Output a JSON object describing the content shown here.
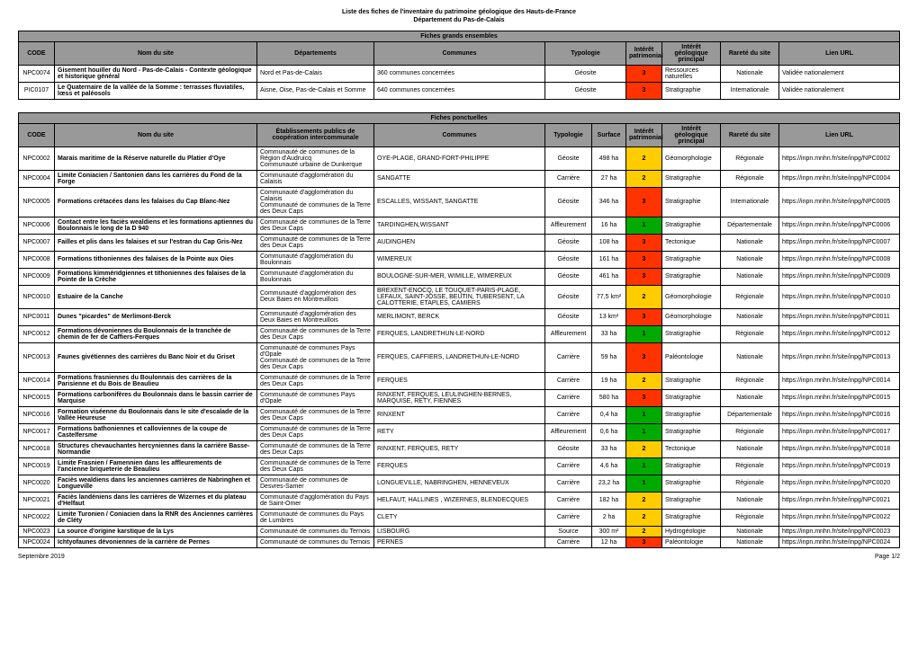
{
  "title_line1": "Liste des fiches de l'inventaire du patrimoine géologique des Hauts-de-France",
  "title_line2": "Département du Pas-de-Calais",
  "section1_banner": "Fiches grands ensembles",
  "section2_banner": "Fiches ponctuelles",
  "t1_cols": {
    "code": "CODE",
    "nom": "Nom du site",
    "dep": "Départements",
    "comm": "Communes",
    "typ": "Typologie",
    "int": "Intérêt patrimonial",
    "intgeo": "Intérêt géologique principal",
    "rarete": "Rareté du site",
    "lien": "Lien URL"
  },
  "t2_cols": {
    "code": "CODE",
    "nom": "Nom du site",
    "etab": "Établissements publics de coopération intercommunale",
    "comm": "Communes",
    "typ": "Typologie",
    "surf": "Surface",
    "int": "Intérêt patrimonial",
    "intgeo": "Intérêt géologique principal",
    "rarete": "Rareté du site",
    "lien": "Lien URL"
  },
  "t1_rows": [
    {
      "code": "NPC0074",
      "nom": "Gisement houiller du Nord - Pas-de-Calais - Contexte géologique et historique général",
      "dep": "Nord et Pas-de-Calais",
      "comm": "360 communes concernées",
      "typ": "Géosite",
      "int": 3,
      "intgeo": "Ressources naturelles",
      "rarete": "Nationale",
      "lien": "Validée nationalement"
    },
    {
      "code": "PIC0107",
      "nom": "Le Quaternaire de la vallée de la Somme : terrasses fluviatiles, lœss et paléosols",
      "dep": "Aisne, Oise, Pas-de-Calais et Somme",
      "comm": "640 communes concernées",
      "typ": "Géosite",
      "int": 3,
      "intgeo": "Stratigraphie",
      "rarete": "Internationale",
      "lien": "Validée nationalement"
    }
  ],
  "t2_rows": [
    {
      "code": "NPC0002",
      "nom": "Marais maritime de la Réserve naturelle du Platier d'Oye",
      "etab": "Communauté de communes de la Région d'Audruicq\nCommunauté urbaine de Dunkerque",
      "comm": "OYE-PLAGE, GRAND-FORT-PHILIPPE",
      "typ": "Géosite",
      "surf": "498 ha",
      "int": 2,
      "intgeo": "Géomorphologie",
      "rarete": "Régionale",
      "lien": "https://inpn.mnhn.fr/site/inpg/NPC0002"
    },
    {
      "code": "NPC0004",
      "nom": "Limite Coniacien / Santonien dans les carrières du Fond de la Forge",
      "etab": "Communauté d'agglomération du Calaisis",
      "comm": "SANGATTE",
      "typ": "Carrière",
      "surf": "27 ha",
      "int": 2,
      "intgeo": "Stratigraphie",
      "rarete": "Régionale",
      "lien": "https://inpn.mnhn.fr/site/inpg/NPC0004"
    },
    {
      "code": "NPC0005",
      "nom": "Formations crétacées dans les falaises du Cap Blanc-Nez",
      "etab": "Communauté d'agglomération du Calaisis\nCommunauté de communes de la Terre des Deux Caps",
      "comm": "ESCALLES, WISSANT, SANGATTE",
      "typ": "Géosite",
      "surf": "346 ha",
      "int": 3,
      "intgeo": "Stratigraphie",
      "rarete": "Internationale",
      "lien": "https://inpn.mnhn.fr/site/inpg/NPC0005"
    },
    {
      "code": "NPC0006",
      "nom": "Contact entre les faciès wealdiens et les formations aptiennes du Boulonnais le long de la D 940",
      "etab": "Communauté de communes de la Terre des Deux Caps",
      "comm": "TARDINGHEN,WISSANT",
      "typ": "Affleurement",
      "surf": "16 ha",
      "int": 1,
      "intgeo": "Stratigraphie",
      "rarete": "Départementale",
      "lien": "https://inpn.mnhn.fr/site/inpg/NPC0006"
    },
    {
      "code": "NPC0007",
      "nom": "Failles et plis dans les falaises et sur l'estran du Cap Gris-Nez",
      "etab": "Communauté de communes de la Terre des Deux Caps",
      "comm": "AUDINGHEN",
      "typ": "Géosite",
      "surf": "108 ha",
      "int": 3,
      "intgeo": "Tectonique",
      "rarete": "Nationale",
      "lien": "https://inpn.mnhn.fr/site/inpg/NPC0007"
    },
    {
      "code": "NPC0008",
      "nom": "Formations tithoniennes des falaises de la Pointe aux Oies",
      "etab": "Communauté d'agglomération du Boulonnais",
      "comm": "WIMEREUX",
      "typ": "Géosite",
      "surf": "161 ha",
      "int": 3,
      "intgeo": "Stratigraphie",
      "rarete": "Nationale",
      "lien": "https://inpn.mnhn.fr/site/inpg/NPC0008"
    },
    {
      "code": "NPC0009",
      "nom": "Formations kimméridgiennes et tithoniennes des falaises de la Pointe de la Crèche",
      "etab": "Communauté d'agglomération du Boulonnais",
      "comm": "BOULOGNE-SUR-MER, WIMILLE, WIMEREUX",
      "typ": "Géosite",
      "surf": "461 ha",
      "int": 3,
      "intgeo": "Stratigraphie",
      "rarete": "Nationale",
      "lien": "https://inpn.mnhn.fr/site/inpg/NPC0009"
    },
    {
      "code": "NPC0010",
      "nom": "Estuaire de la Canche",
      "etab": "Communauté d'agglomération des Deux Baies en Montreuillois",
      "comm": "BREXENT-ENOCQ, LE TOUQUET-PARIS-PLAGE, LEFAUX, SAINT-JOSSE, BEUTIN, TUBERSENT, LA CALOTTERIE, ETAPLES, CAMIERS",
      "typ": "Géosite",
      "surf": "77,5 km²",
      "int": 2,
      "intgeo": "Géomorphologie",
      "rarete": "Régionale",
      "lien": "https://inpn.mnhn.fr/site/inpg/NPC0010"
    },
    {
      "code": "NPC0011",
      "nom": "Dunes \"picardes\" de Merlimont-Berck",
      "etab": "Communauté d'agglomération des Deux Baies en Montreuillois",
      "comm": "MERLIMONT, BERCK",
      "typ": "Géosite",
      "surf": "13 km²",
      "int": 3,
      "intgeo": "Géomorphologie",
      "rarete": "Nationale",
      "lien": "https://inpn.mnhn.fr/site/inpg/NPC0011"
    },
    {
      "code": "NPC0012",
      "nom": "Formations dévoniennes du Boulonnais de la tranchée de chemin de fer de Caffiers-Ferques",
      "etab": "Communauté de communes de la Terre des Deux Caps",
      "comm": "FERQUES, LANDRETHUN-LE-NORD",
      "typ": "Affleurement",
      "surf": "33 ha",
      "int": 1,
      "intgeo": "Stratigraphie",
      "rarete": "Régionale",
      "lien": "https://inpn.mnhn.fr/site/inpg/NPC0012"
    },
    {
      "code": "NPC0013",
      "nom": "Faunes givétiennes des carrières du Banc Noir et du Griset",
      "etab": "Communauté de communes Pays d'Opale\nCommunauté de communes de la Terre des Deux Caps",
      "comm": "FERQUES, CAFFIERS, LANDRETHUN-LE-NORD",
      "typ": "Carrière",
      "surf": "59 ha",
      "int": 3,
      "intgeo": "Paléontologie",
      "rarete": "Nationale",
      "lien": "https://inpn.mnhn.fr/site/inpg/NPC0013"
    },
    {
      "code": "NPC0014",
      "nom": "Formations frasniennes du Boulonnais des carrières de la Parisienne et du Bois de Beaulieu",
      "etab": "Communauté de communes de la Terre des Deux Caps",
      "comm": "FERQUES",
      "typ": "Carrière",
      "surf": "19 ha",
      "int": 2,
      "intgeo": "Stratigraphie",
      "rarete": "Régionale",
      "lien": "https://inpn.mnhn.fr/site/inpg/NPC0014"
    },
    {
      "code": "NPC0015",
      "nom": "Formations carbonifères du Boulonnais dans le bassin carrier de Marquise",
      "etab": "Communauté de communes Pays d'Opale",
      "comm": "RINXENT, FERQUES, LEULINGHEN-BERNES, MARQUISE, RETY, FIENNES",
      "typ": "Carrière",
      "surf": "580 ha",
      "int": 3,
      "intgeo": "Stratigraphie",
      "rarete": "Nationale",
      "lien": "https://inpn.mnhn.fr/site/inpg/NPC0015"
    },
    {
      "code": "NPC0016",
      "nom": "Formation viséenne du Boulonnais dans le site d'escalade de la Vallée Heureuse",
      "etab": "Communauté de communes de la Terre des Deux Caps",
      "comm": "RINXENT",
      "typ": "Carrière",
      "surf": "0,4 ha",
      "int": 1,
      "intgeo": "Stratigraphie",
      "rarete": "Départementale",
      "lien": "https://inpn.mnhn.fr/site/inpg/NPC0016"
    },
    {
      "code": "NPC0017",
      "nom": "Formations bathoniennes et calloviennes de la coupe de Castelfersme",
      "etab": "Communauté de communes de la Terre des Deux Caps",
      "comm": "RETY",
      "typ": "Affleurement",
      "surf": "0,6 ha",
      "int": 1,
      "intgeo": "Stratigraphie",
      "rarete": "Régionale",
      "lien": "https://inpn.mnhn.fr/site/inpg/NPC0017"
    },
    {
      "code": "NPC0018",
      "nom": "Structures chevauchantes hercyniennes dans la carrière Basse-Normandie",
      "etab": "Communauté de communes de la Terre des Deux Caps",
      "comm": "RINXENT, FERQUES, RETY",
      "typ": "Géosite",
      "surf": "33 ha",
      "int": 2,
      "intgeo": "Tectonique",
      "rarete": "Nationale",
      "lien": "https://inpn.mnhn.fr/site/inpg/NPC0018"
    },
    {
      "code": "NPC0019",
      "nom": "Limite Frasnien / Famennien dans les affleurements de l'ancienne briqueterie de Beaulieu",
      "etab": "Communauté de communes de la Terre des Deux Caps",
      "comm": "FERQUES",
      "typ": "Carrière",
      "surf": "4,6 ha",
      "int": 1,
      "intgeo": "Stratigraphie",
      "rarete": "Régionale",
      "lien": "https://inpn.mnhn.fr/site/inpg/NPC0019"
    },
    {
      "code": "NPC0020",
      "nom": "Faciès wealdiens dans les anciennes carrières de Nabringhen et Longueville",
      "etab": "Communauté de communes de Desvres-Samer",
      "comm": "LONGUEVILLE, NABRINGHEN, HENNEVEUX",
      "typ": "Carrière",
      "surf": "23,2 ha",
      "int": 1,
      "intgeo": "Stratigraphie",
      "rarete": "Régionale",
      "lien": "https://inpn.mnhn.fr/site/inpg/NPC0020"
    },
    {
      "code": "NPC0021",
      "nom": "Faciès landéniens dans les carrières de Wizernes et du plateau d'Helfaut",
      "etab": "Communauté d'agglomération du Pays de Saint-Omer",
      "comm": "HELFAUT, HALLINES , WIZERNES, BLENDECQUES",
      "typ": "Carrière",
      "surf": "182 ha",
      "int": 2,
      "intgeo": "Stratigraphie",
      "rarete": "Nationale",
      "lien": "https://inpn.mnhn.fr/site/inpg/NPC0021"
    },
    {
      "code": "NPC0022",
      "nom": "Limite Turonien / Coniacien dans la RNR des Anciennes carrières de Cléty",
      "etab": "Communauté de communes du Pays de Lumbres",
      "comm": "CLETY",
      "typ": "Carrière",
      "surf": "2 ha",
      "int": 2,
      "intgeo": "Stratigraphie",
      "rarete": "Régionale",
      "lien": "https://inpn.mnhn.fr/site/inpg/NPC0022"
    },
    {
      "code": "NPC0023",
      "nom": "La source d'origine karstique de la Lys",
      "etab": "Communauté de communes du Ternois",
      "comm": "LISBOURG",
      "typ": "Source",
      "surf": "300 m²",
      "int": 2,
      "intgeo": "Hydrogéologie",
      "rarete": "Nationale",
      "lien": "https://inpn.mnhn.fr/site/inpg/NPC0023"
    },
    {
      "code": "NPC0024",
      "nom": "Ichtyofaunes dévoniennes de la carrière de Pernes",
      "etab": "Communauté de communes du Ternois",
      "comm": "PERNES",
      "typ": "Carrière",
      "surf": "12 ha",
      "int": 3,
      "intgeo": "Paléontologie",
      "rarete": "Nationale",
      "lien": "https://inpn.mnhn.fr/site/inpg/NPC0024"
    }
  ],
  "footer_left": "Septembre 2019",
  "footer_right": "Page 1/2",
  "colors": {
    "interest1": "#00aa00",
    "interest2": "#ffcc00",
    "interest3": "#ff3300",
    "header_bg": "#999"
  }
}
